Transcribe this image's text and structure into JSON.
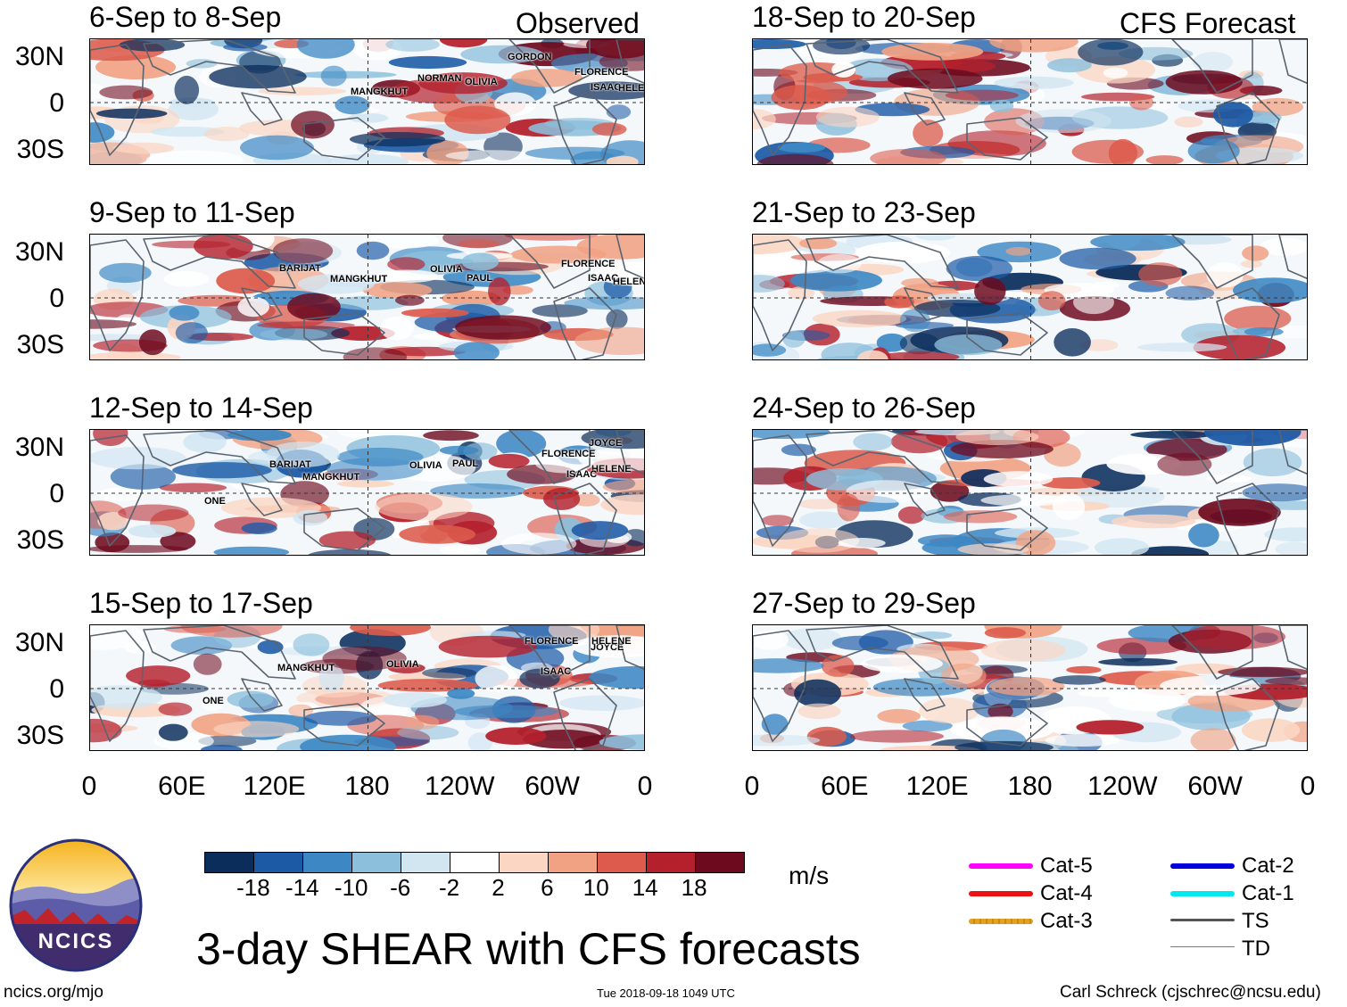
{
  "chart_data": {
    "type": "heatmap",
    "title": "3-day SHEAR with CFS forecasts",
    "units": "m/s",
    "panel_tags": {
      "observed": "Observed",
      "forecast": "CFS Forecast"
    },
    "y_ticks": [
      "30N",
      "0",
      "30S"
    ],
    "x_ticks": [
      "0",
      "60E",
      "120E",
      "180",
      "120W",
      "60W",
      "0"
    ],
    "colorbar": {
      "labels": [
        "-18",
        "-14",
        "-10",
        "-6",
        "-2",
        "2",
        "6",
        "10",
        "14",
        "18"
      ],
      "colors": [
        "#0b2d5c",
        "#1c5aa6",
        "#3d88c4",
        "#8cbfdc",
        "#d2e6f2",
        "#ffffff",
        "#fbd6c3",
        "#f1a283",
        "#dc5b4c",
        "#b4202c",
        "#6e0a1e"
      ]
    },
    "panels": [
      {
        "period": "6-Sep to 8-Sep",
        "kind": "observed",
        "storms": [
          "MANGKHUT",
          "NORMAN",
          "OLIVIA",
          "GORDON",
          "FLORENCE",
          "ISAAC",
          "HELENE"
        ]
      },
      {
        "period": "9-Sep to 11-Sep",
        "kind": "observed",
        "storms": [
          "BARIJAT",
          "MANGKHUT",
          "OLIVIA",
          "PAUL",
          "FLORENCE",
          "ISAAC",
          "HELENE"
        ]
      },
      {
        "period": "12-Sep to 14-Sep",
        "kind": "observed",
        "storms": [
          "BARIJAT",
          "MANGKHUT",
          "OLIVIA",
          "PAUL",
          "JOYCE",
          "FLORENCE",
          "HELENE",
          "ISAAC",
          "ONE"
        ]
      },
      {
        "period": "15-Sep to 17-Sep",
        "kind": "observed",
        "storms": [
          "FLORENCE",
          "JOYCE",
          "HELENE",
          "MANGKHUT",
          "OLIVIA",
          "ISAAC",
          "ONE"
        ]
      },
      {
        "period": "18-Sep to 20-Sep",
        "kind": "forecast",
        "storms": []
      },
      {
        "period": "21-Sep to 23-Sep",
        "kind": "forecast",
        "storms": []
      },
      {
        "period": "24-Sep to 26-Sep",
        "kind": "forecast",
        "storms": []
      },
      {
        "period": "27-Sep to 29-Sep",
        "kind": "forecast",
        "storms": []
      }
    ]
  },
  "legend": [
    {
      "label": "Cat-5",
      "color": "#ff00ff"
    },
    {
      "label": "Cat-4",
      "color": "#ee1111"
    },
    {
      "label": "Cat-3",
      "color": "#e6a020"
    },
    {
      "label": "Cat-2",
      "color": "#0000dd"
    },
    {
      "label": "Cat-1",
      "color": "#00e8f0"
    },
    {
      "label": "TS",
      "color": "#555555"
    },
    {
      "label": "TD",
      "color": "#777777"
    }
  ],
  "logo": {
    "text": "NCICS"
  },
  "footer": {
    "url": "ncics.org/mjo",
    "timestamp": "Tue 2018-09-18 1049 UTC",
    "author": "Carl Schreck (cjschrec@ncsu.edu)"
  }
}
